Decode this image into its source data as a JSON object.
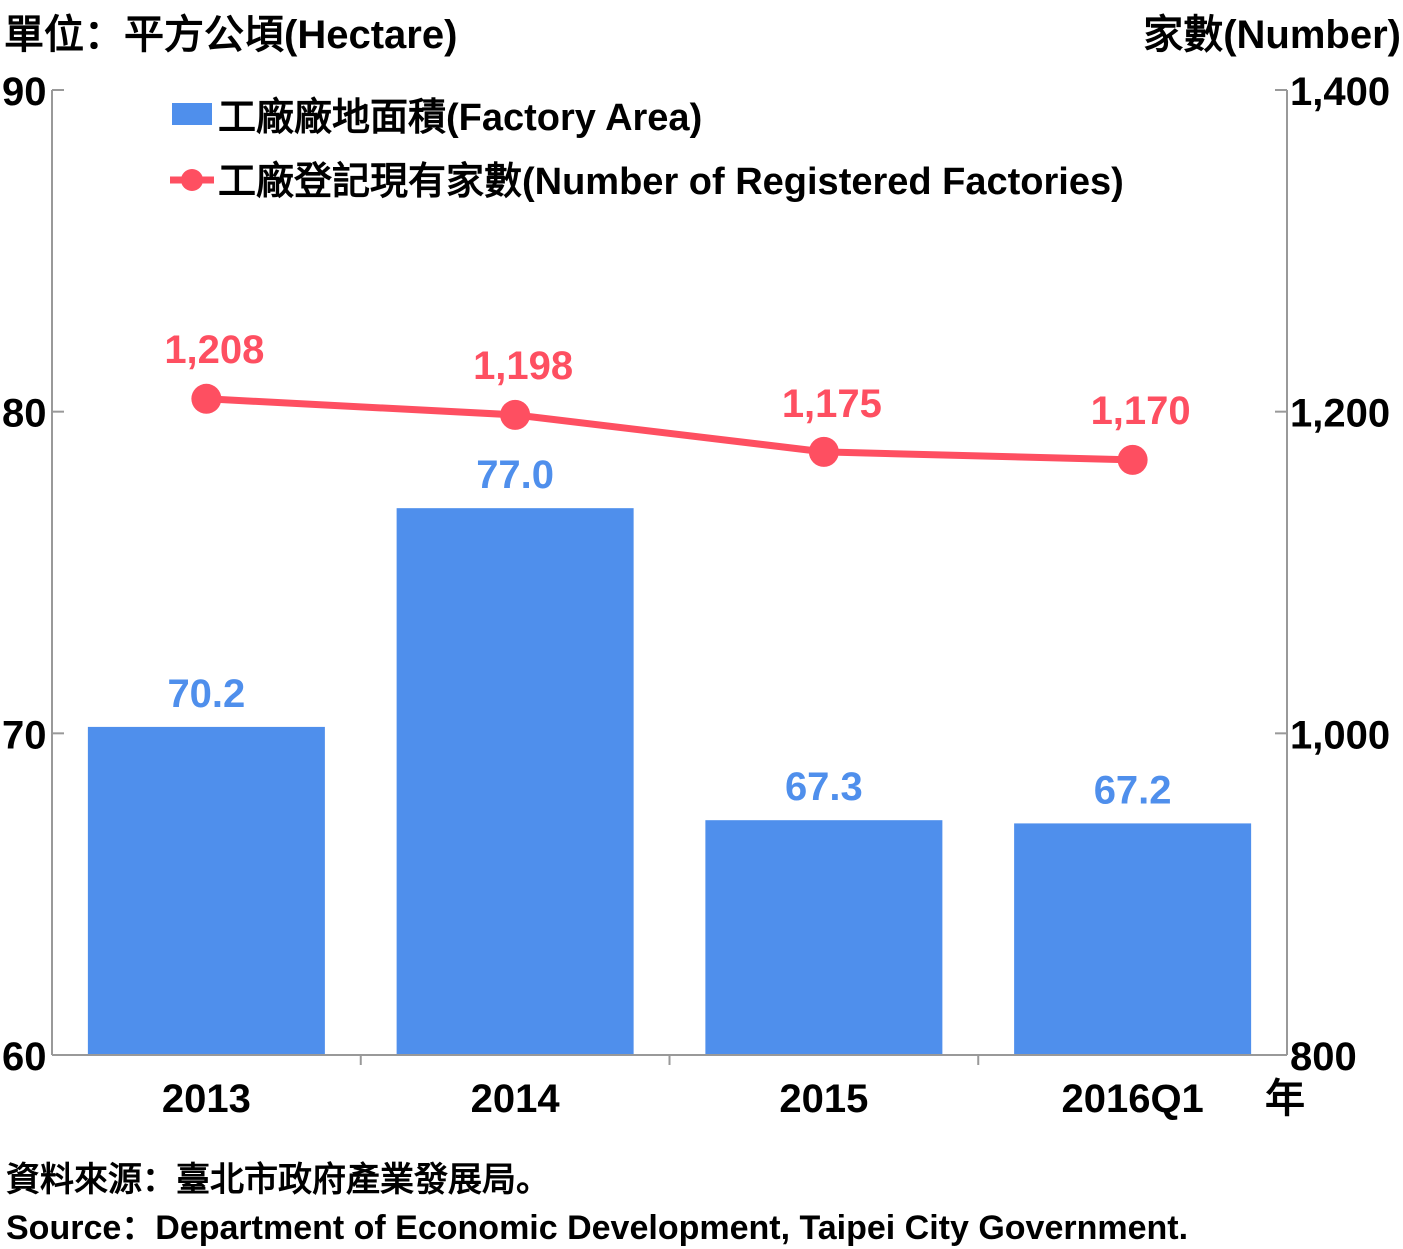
{
  "units": {
    "left": "單位：平方公頃(Hectare)",
    "right": "家數(Number)"
  },
  "chart_data": {
    "type": "bar",
    "categories": [
      "2013",
      "2014",
      "2015",
      "2016Q1"
    ],
    "x_unit": "年",
    "series": [
      {
        "name": "工廠廠地面積(Factory Area)",
        "type": "bar",
        "axis": "left",
        "color": "#4f8fec",
        "values": [
          70.2,
          77.0,
          67.3,
          67.2
        ],
        "labels": [
          "70.2",
          "77.0",
          "67.3",
          "67.2"
        ]
      },
      {
        "name": "工廠登記現有家數(Number of Registered Factories)",
        "type": "line",
        "axis": "right",
        "color": "#fe4f61",
        "values": [
          1208,
          1198,
          1175,
          1170
        ],
        "labels": [
          "1,208",
          "1,198",
          "1,175",
          "1,170"
        ]
      }
    ],
    "y_left": {
      "ylim": [
        60,
        90
      ],
      "ticks": [
        60,
        70,
        80,
        90
      ],
      "tick_labels": [
        "60",
        "70",
        "80",
        "90"
      ]
    },
    "y_right": {
      "ylim": [
        800,
        1400
      ],
      "ticks": [
        800,
        1000,
        1200,
        1400
      ],
      "tick_labels": [
        "800",
        "1,000",
        "1,200",
        "1,400"
      ]
    },
    "legend_position": "top-left",
    "grid": false
  },
  "source": {
    "zh": "資料來源：臺北市政府產業發展局。",
    "en": "Source：Department of Economic Development, Taipei City Government."
  }
}
